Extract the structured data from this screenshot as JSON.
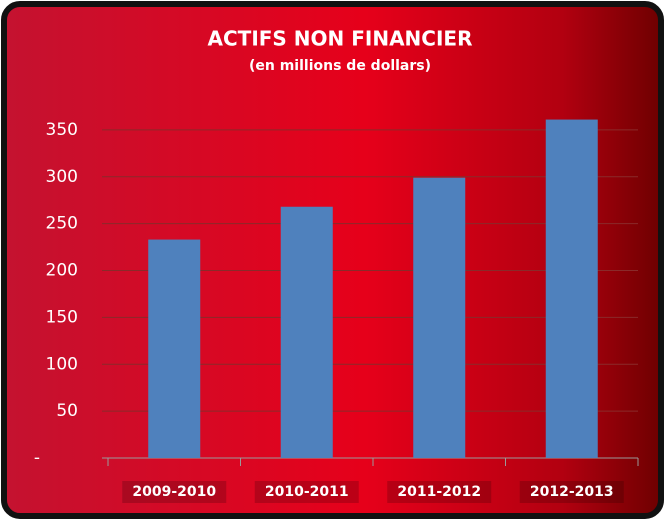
{
  "chart_data": {
    "type": "bar",
    "title": "ACTIFS NON FINANCIER",
    "subtitle": "(en millions de dollars)",
    "categories": [
      "2009-2010",
      "2010-2011",
      "2011-2012",
      "2012-2013"
    ],
    "values": [
      233,
      268,
      299,
      361
    ],
    "color": "#4f81bd",
    "ylim": [
      0,
      400
    ],
    "yticks": [
      {
        "value": 0,
        "label": "-"
      },
      50,
      100,
      150,
      200,
      250,
      300,
      350
    ],
    "grid": true
  }
}
